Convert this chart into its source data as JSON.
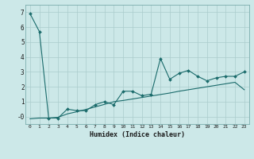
{
  "title": "",
  "xlabel": "Humidex (Indice chaleur)",
  "background_color": "#cce8e8",
  "grid_color": "#aacccc",
  "line_color": "#1a6b6b",
  "x_values": [
    0,
    1,
    2,
    3,
    4,
    5,
    6,
    7,
    8,
    9,
    10,
    11,
    12,
    13,
    14,
    15,
    16,
    17,
    18,
    19,
    20,
    21,
    22,
    23
  ],
  "y_main": [
    6.9,
    5.7,
    -0.1,
    -0.1,
    0.5,
    0.4,
    0.4,
    0.8,
    1.0,
    0.8,
    1.7,
    1.7,
    1.4,
    1.5,
    3.9,
    2.5,
    2.9,
    3.1,
    2.7,
    2.4,
    2.6,
    2.7,
    2.7,
    3.0
  ],
  "y_ref": [
    -0.15,
    -0.1,
    -0.1,
    -0.05,
    0.18,
    0.32,
    0.48,
    0.65,
    0.82,
    1.0,
    1.08,
    1.18,
    1.28,
    1.38,
    1.48,
    1.58,
    1.7,
    1.8,
    1.9,
    2.0,
    2.1,
    2.2,
    2.3,
    1.8
  ],
  "ylim": [
    -0.5,
    7.5
  ],
  "xlim": [
    -0.5,
    23.5
  ],
  "yticks": [
    0,
    1,
    2,
    3,
    4,
    5,
    6,
    7
  ],
  "ytick_labels": [
    "-0",
    "1",
    "2",
    "3",
    "4",
    "5",
    "6",
    "7"
  ],
  "xticks": [
    0,
    1,
    2,
    3,
    4,
    5,
    6,
    7,
    8,
    9,
    10,
    11,
    12,
    13,
    14,
    15,
    16,
    17,
    18,
    19,
    20,
    21,
    22,
    23
  ]
}
